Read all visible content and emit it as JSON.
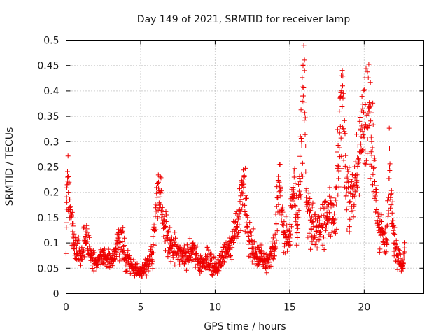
{
  "chart_data": {
    "type": "scatter",
    "title": "Day 149 of 2021, SRMTID for receiver lamp",
    "xlabel": "GPS time / hours",
    "ylabel": "SRMTID / TECUs",
    "xlim": [
      0,
      24
    ],
    "ylim": [
      0,
      0.5
    ],
    "x_ticks": [
      0,
      5,
      10,
      15,
      20
    ],
    "y_ticks": [
      0,
      0.05,
      0.1,
      0.15,
      0.2,
      0.25,
      0.3,
      0.35,
      0.4,
      0.45,
      0.5
    ],
    "x_tick_labels": [
      "0",
      "5",
      "10",
      "15",
      "20"
    ],
    "y_tick_labels": [
      "0",
      "0.05",
      "0.1",
      "0.15",
      "0.2",
      "0.25",
      "0.3",
      "0.35",
      "0.4",
      "0.45",
      "0.5"
    ],
    "grid": true,
    "marker": "plus",
    "color": "#ee0000",
    "x_range_of_data": [
      0,
      22.7
    ],
    "anchor_points": [
      [
        0.0,
        0.14
      ],
      [
        0.05,
        0.18
      ],
      [
        0.1,
        0.23
      ],
      [
        0.15,
        0.2
      ],
      [
        0.2,
        0.22
      ],
      [
        0.25,
        0.17
      ],
      [
        0.3,
        0.15
      ],
      [
        0.5,
        0.11
      ],
      [
        0.7,
        0.09
      ],
      [
        1.0,
        0.07
      ],
      [
        1.3,
        0.11
      ],
      [
        1.6,
        0.08
      ],
      [
        2.0,
        0.06
      ],
      [
        2.5,
        0.07
      ],
      [
        3.0,
        0.06
      ],
      [
        3.5,
        0.09
      ],
      [
        3.7,
        0.12
      ],
      [
        4.0,
        0.07
      ],
      [
        4.5,
        0.05
      ],
      [
        5.0,
        0.04
      ],
      [
        5.5,
        0.06
      ],
      [
        5.8,
        0.08
      ],
      [
        6.1,
        0.19
      ],
      [
        6.2,
        0.22
      ],
      [
        6.5,
        0.14
      ],
      [
        7.0,
        0.1
      ],
      [
        7.5,
        0.08
      ],
      [
        8.0,
        0.07
      ],
      [
        8.5,
        0.09
      ],
      [
        9.0,
        0.06
      ],
      [
        9.5,
        0.07
      ],
      [
        10.0,
        0.05
      ],
      [
        10.5,
        0.07
      ],
      [
        11.0,
        0.09
      ],
      [
        11.5,
        0.13
      ],
      [
        11.8,
        0.2
      ],
      [
        11.9,
        0.23
      ],
      [
        12.2,
        0.12
      ],
      [
        12.5,
        0.09
      ],
      [
        13.0,
        0.07
      ],
      [
        13.5,
        0.06
      ],
      [
        14.0,
        0.1
      ],
      [
        14.2,
        0.19
      ],
      [
        14.3,
        0.22
      ],
      [
        14.6,
        0.12
      ],
      [
        15.0,
        0.11
      ],
      [
        15.3,
        0.23
      ],
      [
        15.5,
        0.12
      ],
      [
        15.8,
        0.3
      ],
      [
        15.85,
        0.38
      ],
      [
        15.9,
        0.45
      ],
      [
        15.95,
        0.49
      ],
      [
        16.1,
        0.18
      ],
      [
        16.5,
        0.14
      ],
      [
        17.0,
        0.12
      ],
      [
        17.5,
        0.16
      ],
      [
        18.0,
        0.14
      ],
      [
        18.4,
        0.33
      ],
      [
        18.5,
        0.39
      ],
      [
        18.55,
        0.41
      ],
      [
        18.8,
        0.22
      ],
      [
        19.0,
        0.18
      ],
      [
        19.5,
        0.22
      ],
      [
        19.8,
        0.31
      ],
      [
        19.9,
        0.32
      ],
      [
        20.3,
        0.37
      ],
      [
        20.35,
        0.36
      ],
      [
        20.5,
        0.3
      ],
      [
        20.8,
        0.2
      ],
      [
        21.0,
        0.12
      ],
      [
        21.5,
        0.1
      ],
      [
        21.7,
        0.25
      ],
      [
        22.0,
        0.1
      ],
      [
        22.3,
        0.07
      ],
      [
        22.6,
        0.05
      ],
      [
        22.7,
        0.09
      ]
    ]
  }
}
